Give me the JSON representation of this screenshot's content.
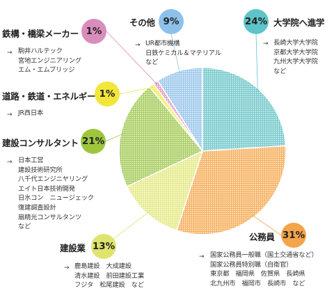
{
  "chart_data": {
    "type": "pie",
    "start_angle_deg": 0,
    "direction": "clockwise",
    "slices": [
      {
        "label": "大学院へ進学",
        "value": 24,
        "percent_label": "24%",
        "color": "#76c9cc",
        "badge_color": "#5ec4c9",
        "examples": [
          "長崎大学大学院",
          "京都大学大学院",
          "九州大学大学院",
          "など"
        ]
      },
      {
        "label": "公務員",
        "value": 31,
        "percent_label": "31%",
        "color": "#f6b05e",
        "badge_color": "#f4a44a",
        "examples": [
          "国家公務員一般職（国土交通省など）",
          "国家公務員特別職（自衛官）",
          "東京都　福岡県　佐賀県　長崎県",
          "北九州市　福岡市　長崎市　など"
        ]
      },
      {
        "label": "建設業",
        "value": 13,
        "percent_label": "13%",
        "color": "#e5ea8a",
        "badge_color": "#dfe46e",
        "examples": [
          "鹿島建設　大成建設",
          "清水建設　前田建設工業",
          "フジタ　松尾建設　など"
        ]
      },
      {
        "label": "建設コンサルタント",
        "value": 21,
        "percent_label": "21%",
        "color": "#a7cd5e",
        "badge_color": "#9dc63e",
        "examples": [
          "日本工営",
          "建設技術研究所",
          "八千代エンジニヤリング",
          "エイト日本技術開発",
          "日水コン　ニュージェック",
          "復建調査設計",
          "扇精光コンサルタンツ",
          "など"
        ]
      },
      {
        "label": "道路・鉄道・エネルギー",
        "value": 1,
        "percent_label": "1%",
        "color": "#f2ea5c",
        "badge_color": "#f2e63a",
        "examples": [
          "JR西日本"
        ]
      },
      {
        "label": "鉄構・橋梁メーカー",
        "value": 1,
        "percent_label": "1%",
        "color": "#e59fc8",
        "badge_color": "#d98dbb",
        "examples": [
          "駒井ハルテック",
          "宮地エンジニアリング",
          "エム・エムブリッジ"
        ]
      },
      {
        "label": "その他",
        "value": 9,
        "percent_label": "9%",
        "color": "#9cc8ec",
        "badge_color": "#8ec1ea",
        "examples": [
          "UR都市機構",
          "日鉄ケミカル＆マテリアル",
          "など"
        ]
      }
    ],
    "title": "",
    "legend": "none"
  },
  "arrow_glyph": "→"
}
